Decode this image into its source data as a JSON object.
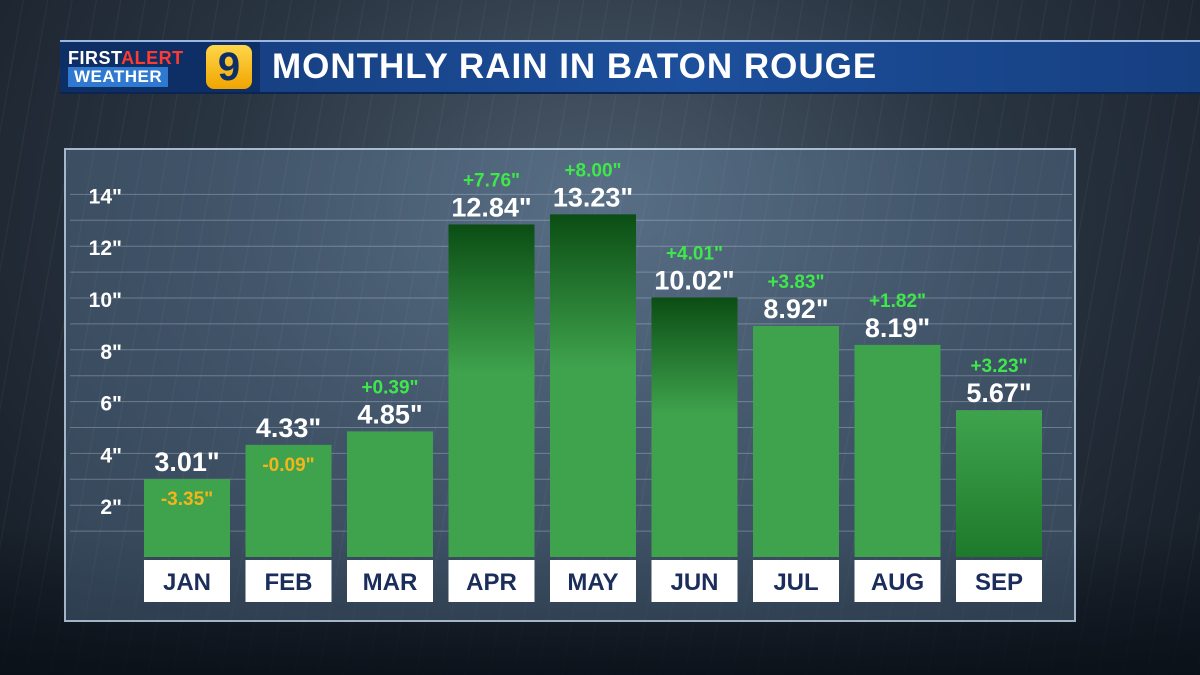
{
  "header": {
    "logo_line1_a": "FIRST",
    "logo_line1_b": "ALERT",
    "logo_line2": "WEATHER",
    "logo_number": "9",
    "title": "MONTHLY RAIN IN BATON ROUGE"
  },
  "colors": {
    "bar_light": "#3fa34d",
    "bar_dark": "#0b4d14",
    "positive_departure": "#3ee84a",
    "negative_departure": "#f3b51b",
    "value_text": "#ffffff",
    "month_label_bg": "#ffffff",
    "month_label_text": "#1b2d5a"
  },
  "chart_data": {
    "type": "bar",
    "title": "MONTHLY RAIN IN BATON ROUGE",
    "categories": [
      "JAN",
      "FEB",
      "MAR",
      "APR",
      "MAY",
      "JUN",
      "JUL",
      "AUG",
      "SEP"
    ],
    "values": [
      3.01,
      4.33,
      4.85,
      12.84,
      13.23,
      10.02,
      8.92,
      8.19,
      5.67
    ],
    "value_labels": [
      "3.01\"",
      "4.33\"",
      "4.85\"",
      "12.84\"",
      "13.23\"",
      "10.02\"",
      "8.92\"",
      "8.19\"",
      "5.67\""
    ],
    "departures": [
      -3.35,
      -0.09,
      0.39,
      7.76,
      8.0,
      4.01,
      3.83,
      1.82,
      3.23
    ],
    "departure_labels": [
      "-3.35\"",
      "-0.09\"",
      "+0.39\"",
      "+7.76\"",
      "+8.00\"",
      "+4.01\"",
      "+3.83\"",
      "+1.82\"",
      "+3.23\""
    ],
    "y_ticks": [
      2,
      4,
      6,
      8,
      10,
      12,
      14
    ],
    "y_tick_labels": [
      "2\"",
      "4\"",
      "6\"",
      "8\"",
      "10\"",
      "12\"",
      "14\""
    ],
    "ylim": [
      0,
      14
    ],
    "grid": true,
    "legend": "none"
  }
}
